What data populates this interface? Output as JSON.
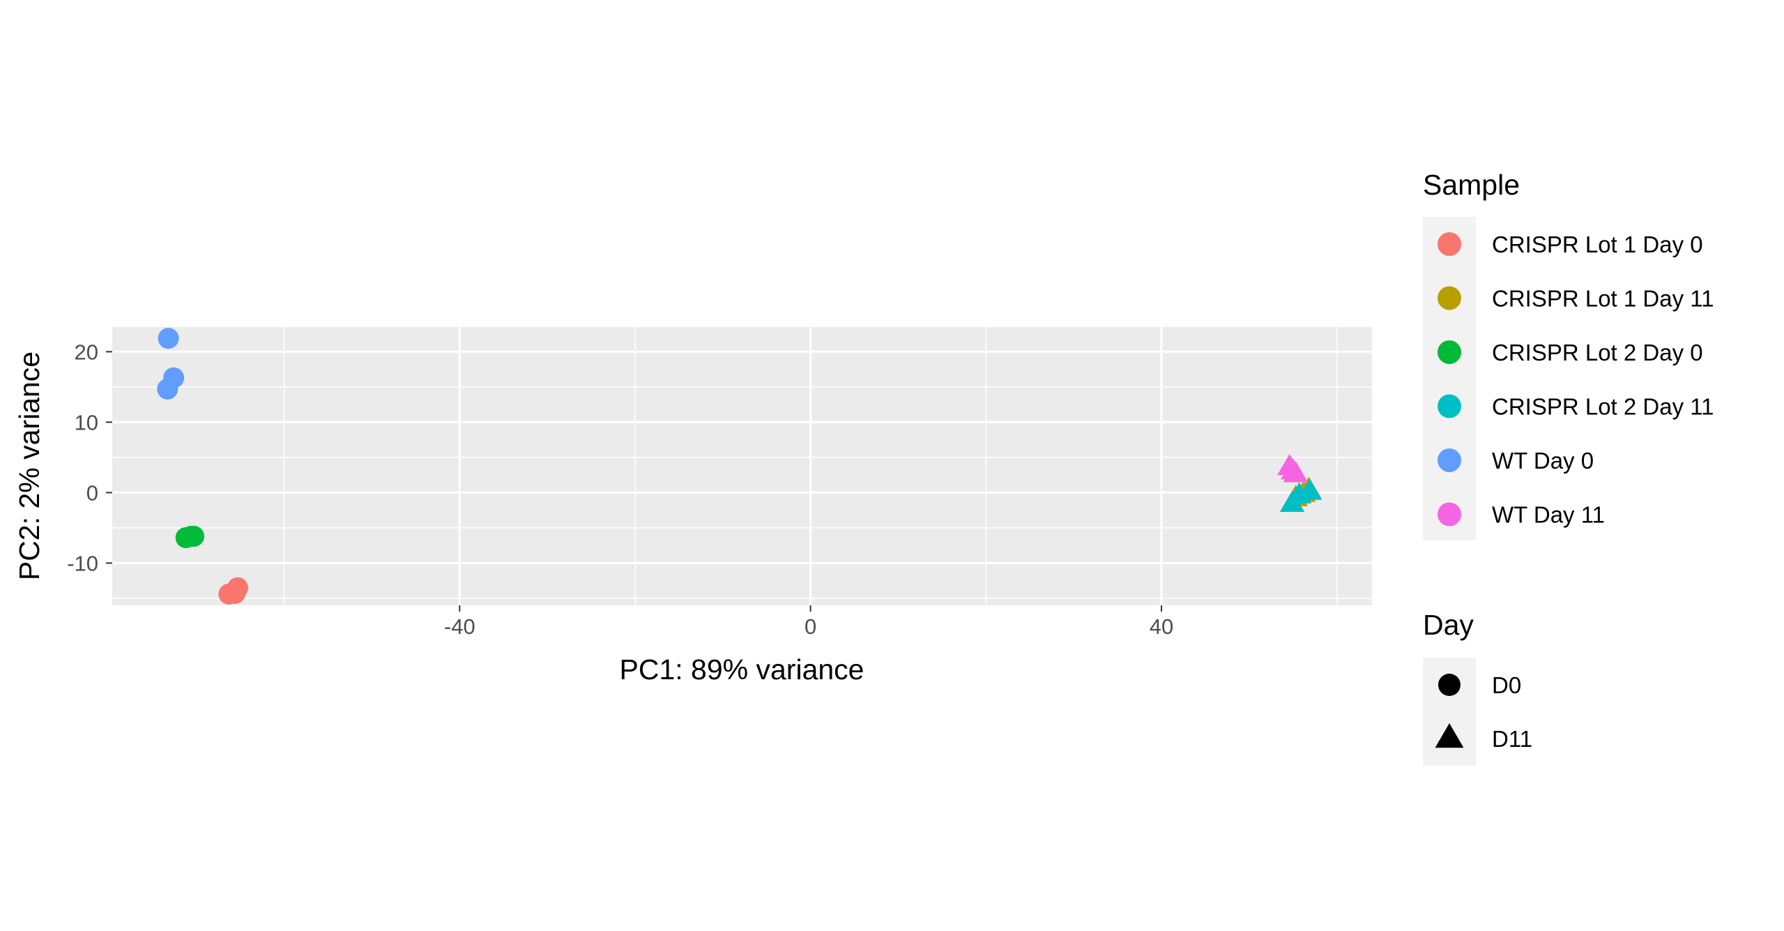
{
  "chart_data": {
    "type": "scatter",
    "xlabel": "PC1: 89% variance",
    "ylabel": "PC2: 2% variance",
    "xlim": [
      -79.6,
      64.0
    ],
    "ylim": [
      -16.0,
      23.5
    ],
    "x_ticks": [
      -40,
      0,
      40
    ],
    "y_ticks": [
      -10,
      0,
      10,
      20
    ],
    "grid": true,
    "legend_placement": "right",
    "color_legend": {
      "title": "Sample",
      "entries": [
        {
          "label": "CRISPR Lot 1 Day 0",
          "color": "#F8766D"
        },
        {
          "label": "CRISPR Lot 1 Day 11",
          "color": "#B79F00"
        },
        {
          "label": "CRISPR Lot 2 Day 0",
          "color": "#00BA38"
        },
        {
          "label": "CRISPR Lot 2 Day 11",
          "color": "#00BFC4"
        },
        {
          "label": "WT Day 0",
          "color": "#619CFF"
        },
        {
          "label": "WT Day 11",
          "color": "#F564E3"
        }
      ]
    },
    "shape_legend": {
      "title": "Day",
      "entries": [
        {
          "label": "D0",
          "shape": "circle"
        },
        {
          "label": "D11",
          "shape": "triangle"
        }
      ]
    },
    "series": [
      {
        "name": "CRISPR Lot 1 Day 0",
        "color": "#F8766D",
        "shape": "circle",
        "points": [
          [
            -66.3,
            -14.4
          ],
          [
            -65.6,
            -14.3
          ],
          [
            -65.3,
            -13.5
          ]
        ]
      },
      {
        "name": "CRISPR Lot 1 Day 11",
        "color": "#B79F00",
        "shape": "triangle",
        "points": [
          [
            55.3,
            -0.8
          ],
          [
            56.2,
            -0.2
          ],
          [
            56.8,
            0.4
          ]
        ]
      },
      {
        "name": "CRISPR Lot 2 Day 0",
        "color": "#00BA38",
        "shape": "circle",
        "points": [
          [
            -71.2,
            -6.4
          ],
          [
            -70.6,
            -6.2
          ],
          [
            -70.3,
            -6.2
          ]
        ]
      },
      {
        "name": "CRISPR Lot 2 Day 11",
        "color": "#00BFC4",
        "shape": "triangle",
        "points": [
          [
            54.9,
            -1.6
          ],
          [
            55.7,
            -0.4
          ],
          [
            56.9,
            0.1
          ]
        ]
      },
      {
        "name": "WT Day 0",
        "color": "#619CFF",
        "shape": "circle",
        "points": [
          [
            -73.2,
            21.9
          ],
          [
            -72.6,
            16.3
          ],
          [
            -73.3,
            14.7
          ]
        ]
      },
      {
        "name": "WT Day 11",
        "color": "#F564E3",
        "shape": "triangle",
        "points": [
          [
            54.6,
            3.6
          ],
          [
            55.0,
            3.0
          ],
          [
            55.3,
            2.6
          ]
        ]
      }
    ]
  }
}
